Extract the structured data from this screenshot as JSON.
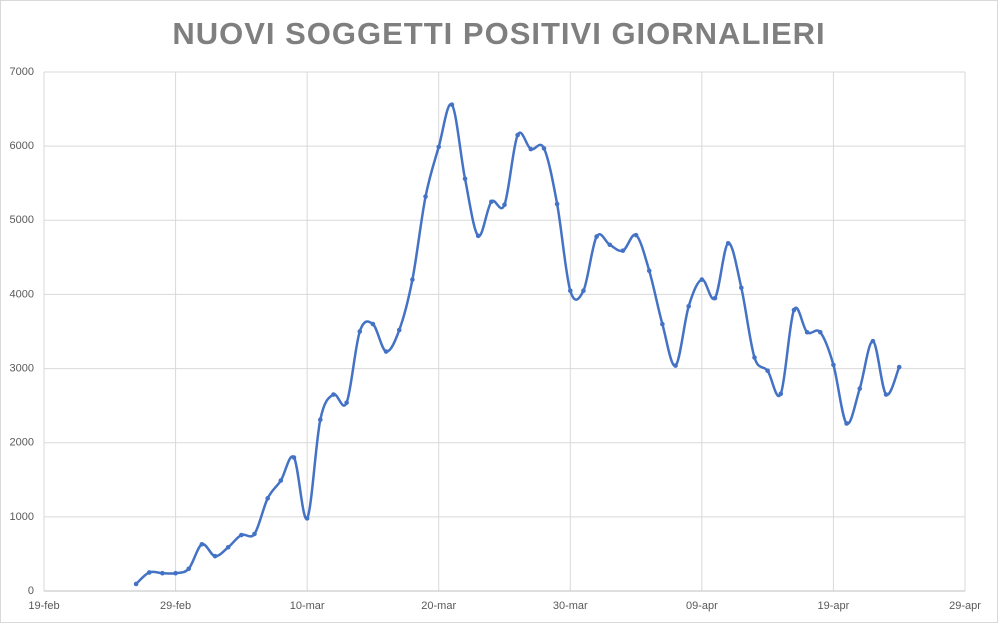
{
  "chart_data": {
    "type": "line",
    "title": "NUOVI SOGGETTI POSITIVI GIORNALIERI",
    "x": [
      "26-feb",
      "27-feb",
      "28-feb",
      "29-feb",
      "01-mar",
      "02-mar",
      "03-mar",
      "04-mar",
      "05-mar",
      "06-mar",
      "07-mar",
      "08-mar",
      "09-mar",
      "10-mar",
      "11-mar",
      "12-mar",
      "13-mar",
      "14-mar",
      "15-mar",
      "16-mar",
      "17-mar",
      "18-mar",
      "19-mar",
      "20-mar",
      "21-mar",
      "22-mar",
      "23-mar",
      "24-mar",
      "25-mar",
      "26-mar",
      "27-mar",
      "28-mar",
      "29-mar",
      "30-mar",
      "31-mar",
      "01-apr",
      "02-apr",
      "03-apr",
      "04-apr",
      "05-apr",
      "06-apr",
      "07-apr",
      "08-apr",
      "09-apr",
      "10-apr",
      "11-apr",
      "12-apr",
      "13-apr",
      "14-apr",
      "15-apr",
      "16-apr",
      "17-apr",
      "18-apr",
      "19-apr",
      "20-apr",
      "21-apr",
      "22-apr",
      "23-apr",
      "24-apr"
    ],
    "series": [
      {
        "color": "#4472c4",
        "values": [
          95,
          250,
          240,
          240,
          300,
          630,
          470,
          590,
          755,
          770,
          1250,
          1490,
          1800,
          980,
          2310,
          2650,
          2540,
          3500,
          3600,
          3230,
          3520,
          4200,
          5320,
          5990,
          6560,
          5560,
          4790,
          5250,
          5210,
          6150,
          5960,
          5970,
          5220,
          4050,
          4050,
          4780,
          4670,
          4590,
          4800,
          4320,
          3600,
          3040,
          3840,
          4200,
          3950,
          4690,
          4090,
          3150,
          2970,
          2660,
          3790,
          3490,
          3490,
          3050,
          2260,
          2730,
          3370,
          2650,
          3020
        ]
      }
    ],
    "xlim": [
      "19-feb",
      "29-apr"
    ],
    "xticks": [
      "19-feb",
      "29-feb",
      "10-mar",
      "20-mar",
      "30-mar",
      "09-apr",
      "19-apr",
      "29-apr"
    ],
    "ylim": [
      0,
      7000
    ],
    "yticks": [
      0,
      1000,
      2000,
      3000,
      4000,
      5000,
      6000,
      7000
    ],
    "grid": true
  }
}
